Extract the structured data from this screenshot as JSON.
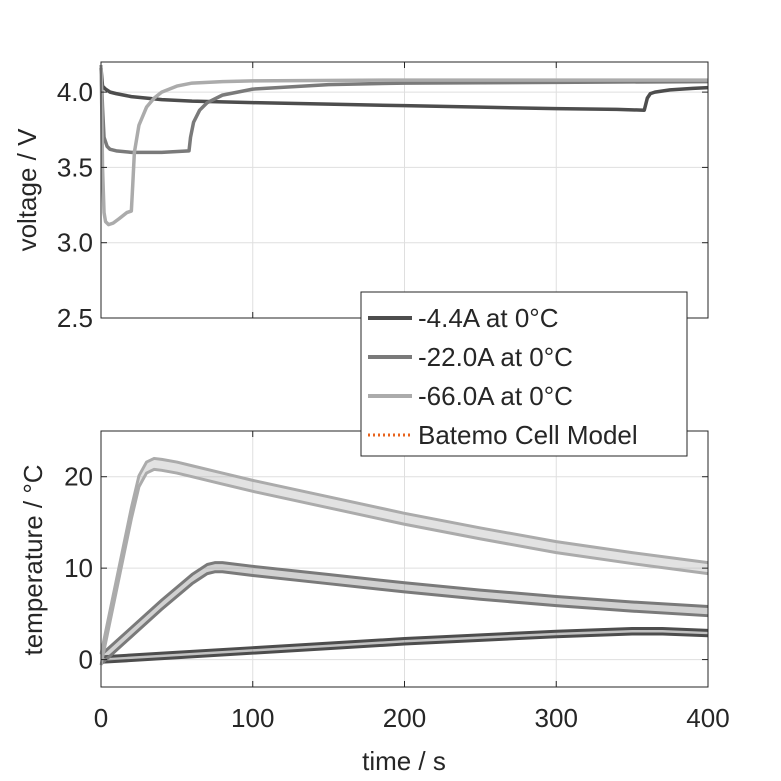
{
  "chart_data": [
    {
      "type": "line",
      "id": "voltage",
      "ylabel": "voltage / V",
      "xlim": [
        0,
        400
      ],
      "ylim": [
        2.5,
        4.2
      ],
      "yticks": [
        2.5,
        3.0,
        3.5,
        4.0
      ],
      "ytick_labels": [
        "2.5",
        "3.0",
        "3.5",
        "4.0"
      ],
      "xticks": [
        0,
        100,
        200,
        300,
        400
      ],
      "grid": true,
      "series": [
        {
          "name": "-4.4A at 0°C",
          "color": "#4d4d4d",
          "x": [
            0,
            1,
            3,
            6,
            10,
            20,
            40,
            60,
            100,
            150,
            200,
            250,
            300,
            340,
            358,
            360,
            362,
            365,
            375,
            390,
            400
          ],
          "y": [
            4.16,
            4.04,
            4.02,
            4.0,
            3.99,
            3.97,
            3.95,
            3.94,
            3.93,
            3.92,
            3.91,
            3.9,
            3.89,
            3.885,
            3.88,
            3.96,
            3.99,
            4.0,
            4.015,
            4.025,
            4.03
          ]
        },
        {
          "name": "-22.0A at 0°C",
          "color": "#7a7a7a",
          "x": [
            0,
            1,
            2,
            4,
            6,
            10,
            20,
            40,
            58,
            59,
            61,
            65,
            70,
            80,
            100,
            150,
            200,
            300,
            400
          ],
          "y": [
            4.16,
            3.9,
            3.7,
            3.64,
            3.62,
            3.61,
            3.6,
            3.6,
            3.61,
            3.7,
            3.8,
            3.88,
            3.93,
            3.98,
            4.02,
            4.05,
            4.06,
            4.065,
            4.07
          ]
        },
        {
          "name": "-66.0A at 0°C",
          "color": "#ababab",
          "x": [
            0,
            0.5,
            1,
            2,
            3,
            5,
            8,
            12,
            17,
            20,
            21,
            22,
            25,
            30,
            35,
            40,
            50,
            60,
            80,
            100,
            200,
            300,
            400
          ],
          "y": [
            4.18,
            3.9,
            3.5,
            3.2,
            3.14,
            3.12,
            3.13,
            3.16,
            3.2,
            3.21,
            3.4,
            3.6,
            3.78,
            3.9,
            3.96,
            4.0,
            4.04,
            4.06,
            4.07,
            4.075,
            4.08,
            4.08,
            4.08
          ]
        }
      ]
    },
    {
      "type": "line",
      "id": "temperature",
      "xlabel": "time / s",
      "ylabel": "temperature / °C",
      "xlim": [
        0,
        400
      ],
      "ylim": [
        -3,
        25
      ],
      "yticks": [
        0,
        10,
        20
      ],
      "ytick_labels": [
        "0",
        "10",
        "20"
      ],
      "xticks": [
        0,
        100,
        200,
        300,
        400
      ],
      "xtick_labels": [
        "0",
        "100",
        "200",
        "300",
        "400"
      ],
      "grid": true,
      "series": [
        {
          "name": "-4.4A at 0°C",
          "color": "#4d4d4d",
          "band": 0.3,
          "x": [
            0,
            50,
            100,
            150,
            200,
            250,
            300,
            350,
            370,
            400
          ],
          "y": [
            0,
            0.5,
            1.0,
            1.5,
            2.0,
            2.4,
            2.8,
            3.1,
            3.1,
            2.9
          ]
        },
        {
          "name": "-22.0A at 0°C",
          "color": "#7a7a7a",
          "band": 0.5,
          "x": [
            0,
            20,
            40,
            60,
            70,
            75,
            80,
            90,
            100,
            150,
            200,
            250,
            300,
            350,
            400
          ],
          "y": [
            0,
            3.0,
            6.0,
            8.8,
            9.9,
            10.1,
            10.1,
            9.9,
            9.7,
            8.8,
            7.9,
            7.1,
            6.4,
            5.8,
            5.3
          ]
        },
        {
          "name": "-66.0A at 0°C",
          "color": "#ababab",
          "band": 0.6,
          "x": [
            0,
            10,
            20,
            25,
            30,
            35,
            40,
            50,
            60,
            80,
            100,
            150,
            200,
            250,
            300,
            350,
            400
          ],
          "y": [
            0,
            8.0,
            16.0,
            19.5,
            21.0,
            21.4,
            21.3,
            21.0,
            20.6,
            19.8,
            19.0,
            17.2,
            15.4,
            13.8,
            12.3,
            11.1,
            10.0
          ]
        }
      ]
    }
  ],
  "legend": {
    "placement": "between-plots-right",
    "entries": [
      {
        "label": "-4.4A at 0°C",
        "color": "#4d4d4d",
        "style": "solid"
      },
      {
        "label": "-22.0A at 0°C",
        "color": "#7a7a7a",
        "style": "solid"
      },
      {
        "label": "-66.0A at 0°C",
        "color": "#ababab",
        "style": "solid"
      },
      {
        "label": "Batemo Cell Model",
        "color": "#e8631c",
        "style": "dotted"
      }
    ]
  }
}
